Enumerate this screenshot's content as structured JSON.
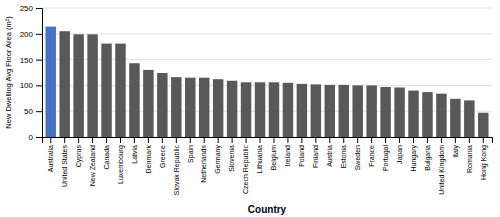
{
  "chart_data": {
    "type": "bar",
    "categories": [
      "Australia",
      "United States",
      "Cyprus",
      "New Zealand",
      "Canada",
      "Luxembourg",
      "Latvia",
      "Denmark",
      "Greece",
      "Slovak Republic",
      "Spain",
      "Netherlands",
      "Germany",
      "Slovenia",
      "Czech Republic",
      "Lithuania",
      "Belgium",
      "Ireland",
      "Poland",
      "Finland",
      "Austria",
      "Estonia",
      "Sweden",
      "France",
      "Portugal",
      "Japan",
      "Hungary",
      "Bulgaria",
      "United Kingdom",
      "Italy",
      "Romania",
      "Hong Kong"
    ],
    "values": [
      214,
      205,
      199,
      199,
      181,
      181,
      143,
      130,
      124,
      116,
      115,
      115,
      112,
      109,
      106,
      106,
      106,
      105,
      103,
      102,
      101,
      101,
      100,
      100,
      97,
      96,
      90,
      87,
      84,
      74,
      71,
      47
    ],
    "colors": [
      "#4472c4",
      "#595959",
      "#595959",
      "#595959",
      "#595959",
      "#595959",
      "#595959",
      "#595959",
      "#595959",
      "#595959",
      "#595959",
      "#595959",
      "#595959",
      "#595959",
      "#595959",
      "#595959",
      "#595959",
      "#595959",
      "#595959",
      "#595959",
      "#595959",
      "#595959",
      "#595959",
      "#595959",
      "#595959",
      "#595959",
      "#595959",
      "#595959",
      "#595959",
      "#595959",
      "#595959",
      "#595959"
    ],
    "xlabel": "Country",
    "ylabel": "New Dwelling Avg Floor Area (m²)",
    "ylim": [
      0,
      250
    ],
    "yticks": [
      0,
      50,
      100,
      150,
      200,
      250
    ],
    "grid": true
  }
}
